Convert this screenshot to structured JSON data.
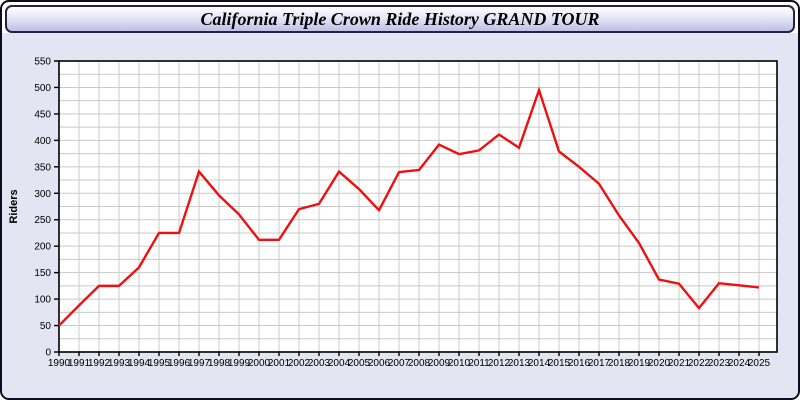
{
  "window": {
    "title": "California Triple Crown Ride History GRAND TOUR"
  },
  "chart_data": {
    "type": "line",
    "title": "California Triple Crown Ride History GRAND TOUR",
    "xlabel": "",
    "ylabel": "Riders",
    "categories": [
      "1990",
      "1991",
      "1992",
      "1993",
      "1994",
      "1995",
      "1996",
      "1997",
      "1998",
      "1999",
      "2000",
      "2001",
      "2002",
      "2003",
      "2004",
      "2005",
      "2006",
      "2007",
      "2008",
      "2009",
      "2010",
      "2011",
      "2012",
      "2013",
      "2014",
      "2015",
      "2016",
      "2017",
      "2018",
      "2019",
      "2020",
      "2021",
      "2022",
      "2023",
      "2024",
      "2025"
    ],
    "series": [
      {
        "name": "Riders",
        "values": [
          50,
          88,
          125,
          125,
          160,
          225,
          225,
          341,
          296,
          260,
          212,
          212,
          270,
          280,
          341,
          308,
          268,
          340,
          344,
          392,
          374,
          381,
          411,
          386,
          495,
          379,
          350,
          318,
          258,
          206,
          137,
          129,
          83,
          130,
          126,
          122
        ]
      }
    ],
    "ylim": [
      0,
      550
    ],
    "ytick_step": 50,
    "minor_ygrid_step": 25,
    "grid": "on",
    "legend": "none",
    "line_color": "#ee0f0f",
    "grid_color": "#c9c9c9",
    "axis_color": "#000000",
    "plot_bg": "#ffffff",
    "panel_bg": "#e4e4f2"
  }
}
